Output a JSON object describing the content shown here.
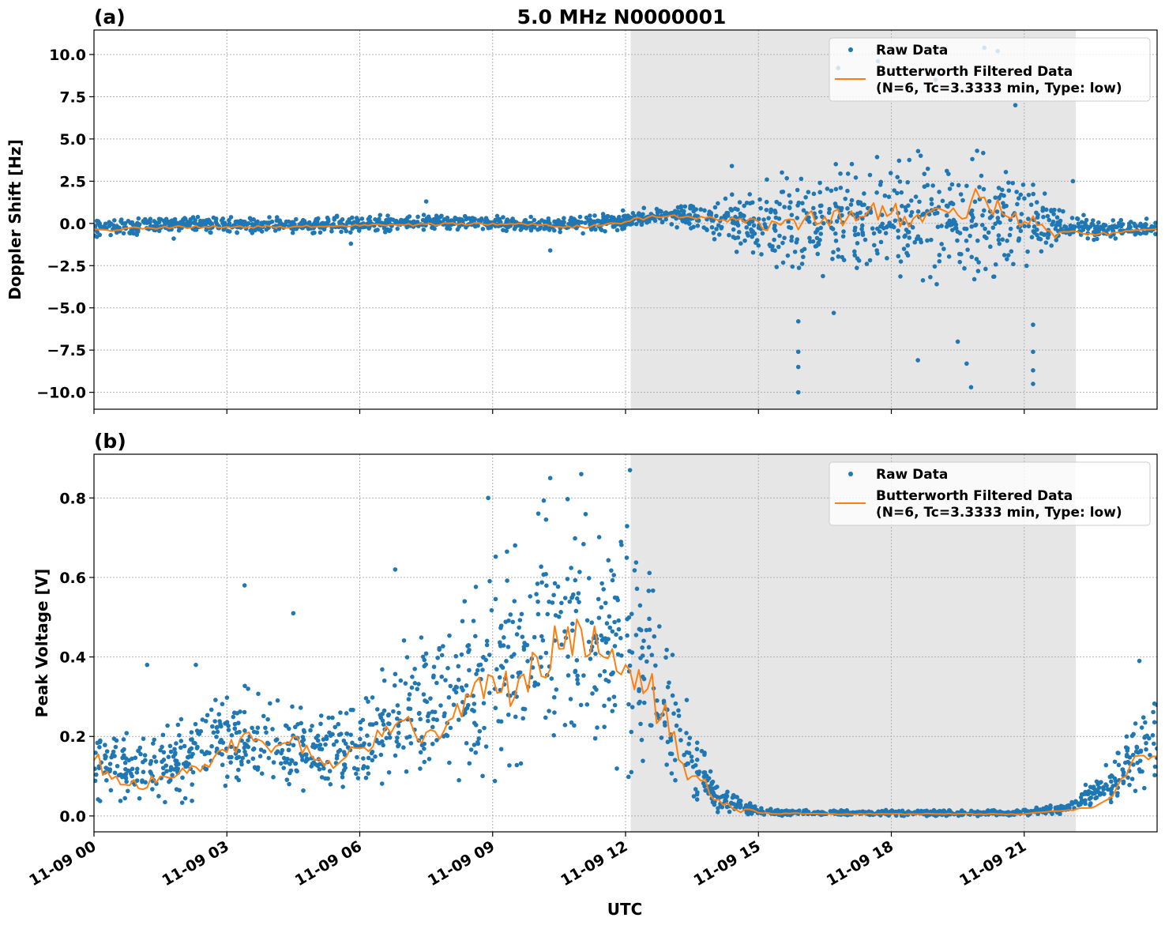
{
  "title": "5.0 MHz N0000001",
  "chart_data": [
    {
      "type": "scatter",
      "panel_label": "(a)",
      "ylabel": "Doppler Shift [Hz]",
      "xlabel": "",
      "date": "11-09",
      "xlim": [
        "00:00",
        "24:00"
      ],
      "ylim": [
        -11.0,
        11.45
      ],
      "grid": true,
      "legend_placement": "top-right",
      "xticks": [
        "11-09 00",
        "11-09 03",
        "11-09 06",
        "11-09 09",
        "11-09 12",
        "11-09 15",
        "11-09 18",
        "11-09 21"
      ],
      "yticks": [
        -10,
        -7.5,
        -5,
        -2.5,
        0,
        2.5,
        5,
        7.5,
        10
      ],
      "ytick_labels": [
        "−10.0",
        "−7.5",
        "−5.0",
        "−2.5",
        "0.0",
        "2.5",
        "5.0",
        "7.5",
        "10.0"
      ],
      "shaded_span": [
        "12:07",
        "22:10"
      ],
      "colors": {
        "raw": "#1f77b4",
        "filtered": "#ff7f0e",
        "shade": "#e6e6e6"
      },
      "legend": {
        "raw": "Raw Data",
        "filtered_line1": "Butterworth Filtered Data",
        "filtered_line2": "(N=6, Tc=3.3333 min, Type: low)"
      },
      "raw_band_hourly": {
        "times": [
          "00:00",
          "01:00",
          "02:00",
          "03:00",
          "04:00",
          "05:00",
          "06:00",
          "07:00",
          "08:00",
          "09:00",
          "10:00",
          "11:00",
          "12:00",
          "13:00",
          "14:00",
          "15:00",
          "16:00",
          "17:00",
          "18:00",
          "19:00",
          "20:00",
          "21:00",
          "22:00",
          "23:00",
          "24:00"
        ],
        "range": [
          [
            -0.8,
            0.2
          ],
          [
            -0.7,
            0.3
          ],
          [
            -0.6,
            0.5
          ],
          [
            -0.6,
            0.4
          ],
          [
            -0.6,
            0.4
          ],
          [
            -0.6,
            0.4
          ],
          [
            -0.6,
            0.5
          ],
          [
            -0.5,
            0.5
          ],
          [
            -0.4,
            0.6
          ],
          [
            -0.5,
            0.5
          ],
          [
            -0.6,
            0.4
          ],
          [
            -0.6,
            0.5
          ],
          [
            -0.4,
            0.9
          ],
          [
            -0.2,
            1.0
          ],
          [
            -1.0,
            1.5
          ],
          [
            -2.5,
            2.5
          ],
          [
            -3.5,
            3.5
          ],
          [
            -3.5,
            3.8
          ],
          [
            -3.5,
            4.0
          ],
          [
            -3.8,
            4.5
          ],
          [
            -3.5,
            4.5
          ],
          [
            -3.0,
            3.0
          ],
          [
            -1.2,
            0.6
          ],
          [
            -0.9,
            0.3
          ],
          [
            -0.8,
            0.3
          ]
        ]
      },
      "raw_outliers": [
        [
          "15:54",
          -10.0
        ],
        [
          "15:54",
          -8.5
        ],
        [
          "15:54",
          -7.6
        ],
        [
          "15:54",
          -5.8
        ],
        [
          "21:12",
          -9.5
        ],
        [
          "21:12",
          -8.7
        ],
        [
          "21:12",
          -7.6
        ],
        [
          "21:12",
          -6.0
        ],
        [
          "19:48",
          -9.7
        ],
        [
          "19:42",
          -8.3
        ],
        [
          "18:36",
          -8.1
        ],
        [
          "19:30",
          -7.0
        ],
        [
          "16:42",
          -5.3
        ],
        [
          "17:42",
          9.6
        ],
        [
          "20:06",
          10.4
        ],
        [
          "20:24",
          10.2
        ],
        [
          "19:42",
          8.9
        ],
        [
          "19:00",
          8.5
        ],
        [
          "16:48",
          9.2
        ],
        [
          "14:24",
          3.4
        ],
        [
          "22:06",
          2.5
        ],
        [
          "10:18",
          -1.6
        ],
        [
          "05:48",
          -1.2
        ],
        [
          "01:48",
          -0.9
        ],
        [
          "07:30",
          1.3
        ],
        [
          "20:48",
          7.0
        ]
      ],
      "filtered": [
        [
          "00:00",
          -0.35
        ],
        [
          "00:30",
          -0.4
        ],
        [
          "01:00",
          -0.25
        ],
        [
          "01:30",
          -0.25
        ],
        [
          "02:00",
          -0.2
        ],
        [
          "02:30",
          -0.2
        ],
        [
          "03:00",
          -0.2
        ],
        [
          "03:30",
          -0.2
        ],
        [
          "04:00",
          -0.2
        ],
        [
          "04:30",
          -0.2
        ],
        [
          "05:00",
          -0.2
        ],
        [
          "05:30",
          -0.15
        ],
        [
          "06:00",
          -0.15
        ],
        [
          "06:30",
          -0.1
        ],
        [
          "07:00",
          -0.1
        ],
        [
          "07:30",
          -0.05
        ],
        [
          "08:00",
          0.0
        ],
        [
          "08:30",
          -0.05
        ],
        [
          "09:00",
          0.0
        ],
        [
          "09:30",
          -0.05
        ],
        [
          "10:00",
          -0.1
        ],
        [
          "10:30",
          -0.2
        ],
        [
          "11:00",
          -0.2
        ],
        [
          "11:30",
          -0.1
        ],
        [
          "12:00",
          0.1
        ],
        [
          "12:30",
          0.35
        ],
        [
          "13:00",
          0.45
        ],
        [
          "13:30",
          0.35
        ],
        [
          "14:00",
          0.3
        ],
        [
          "14:30",
          0.2
        ],
        [
          "15:00",
          0.1
        ],
        [
          "15:30",
          -0.1
        ],
        [
          "16:00",
          0.1
        ],
        [
          "16:30",
          0.4
        ],
        [
          "17:00",
          0.3
        ],
        [
          "17:30",
          0.8
        ],
        [
          "18:00",
          0.6
        ],
        [
          "18:30",
          0.3
        ],
        [
          "19:00",
          0.9
        ],
        [
          "19:30",
          0.5
        ],
        [
          "20:00",
          1.5
        ],
        [
          "20:30",
          0.6
        ],
        [
          "21:00",
          0.1
        ],
        [
          "21:30",
          -0.4
        ],
        [
          "22:00",
          -0.5
        ],
        [
          "22:30",
          -0.6
        ],
        [
          "23:00",
          -0.55
        ],
        [
          "23:30",
          -0.4
        ],
        [
          "24:00",
          -0.35
        ]
      ]
    },
    {
      "type": "scatter",
      "panel_label": "(b)",
      "ylabel": "Peak Voltage [V]",
      "xlabel": "UTC",
      "date": "11-09",
      "xlim": [
        "00:00",
        "24:00"
      ],
      "ylim": [
        -0.04,
        0.91
      ],
      "grid": true,
      "legend_placement": "top-right",
      "xticks": [
        "11-09 00",
        "11-09 03",
        "11-09 06",
        "11-09 09",
        "11-09 12",
        "11-09 15",
        "11-09 18",
        "11-09 21"
      ],
      "yticks": [
        0,
        0.2,
        0.4,
        0.6,
        0.8
      ],
      "ytick_labels": [
        "0.0",
        "0.2",
        "0.4",
        "0.6",
        "0.8"
      ],
      "shaded_span": [
        "12:07",
        "22:10"
      ],
      "colors": {
        "raw": "#1f77b4",
        "filtered": "#ff7f0e",
        "shade": "#e6e6e6"
      },
      "legend": {
        "raw": "Raw Data",
        "filtered_line1": "Butterworth Filtered Data",
        "filtered_line2": "(N=6, Tc=3.3333 min, Type: low)"
      },
      "raw_band_hourly": {
        "times": [
          "00:00",
          "01:00",
          "02:00",
          "03:00",
          "04:00",
          "05:00",
          "06:00",
          "07:00",
          "08:00",
          "09:00",
          "10:00",
          "11:00",
          "12:00",
          "13:00",
          "14:00",
          "15:00",
          "16:00",
          "17:00",
          "18:00",
          "19:00",
          "20:00",
          "21:00",
          "22:00",
          "23:00",
          "24:00"
        ],
        "range": [
          [
            0.02,
            0.28
          ],
          [
            0.02,
            0.2
          ],
          [
            0.03,
            0.26
          ],
          [
            0.06,
            0.35
          ],
          [
            0.06,
            0.3
          ],
          [
            0.05,
            0.28
          ],
          [
            0.05,
            0.3
          ],
          [
            0.06,
            0.45
          ],
          [
            0.07,
            0.5
          ],
          [
            0.08,
            0.65
          ],
          [
            0.1,
            0.8
          ],
          [
            0.1,
            0.8
          ],
          [
            0.1,
            0.8
          ],
          [
            0.05,
            0.45
          ],
          [
            0.01,
            0.1
          ],
          [
            0.0,
            0.02
          ],
          [
            0.0,
            0.015
          ],
          [
            0.0,
            0.015
          ],
          [
            0.0,
            0.015
          ],
          [
            0.0,
            0.015
          ],
          [
            0.0,
            0.015
          ],
          [
            0.0,
            0.015
          ],
          [
            0.005,
            0.04
          ],
          [
            0.03,
            0.15
          ],
          [
            0.05,
            0.35
          ]
        ]
      },
      "raw_outliers": [
        [
          "03:24",
          0.58
        ],
        [
          "04:30",
          0.51
        ],
        [
          "06:48",
          0.62
        ],
        [
          "08:54",
          0.8
        ],
        [
          "10:18",
          0.85
        ],
        [
          "11:00",
          0.86
        ],
        [
          "12:06",
          0.87
        ],
        [
          "01:12",
          0.38
        ],
        [
          "02:18",
          0.38
        ],
        [
          "23:36",
          0.39
        ]
      ],
      "filtered": [
        [
          "00:00",
          0.14
        ],
        [
          "00:30",
          0.1
        ],
        [
          "01:00",
          0.07
        ],
        [
          "01:30",
          0.1
        ],
        [
          "02:00",
          0.12
        ],
        [
          "02:30",
          0.13
        ],
        [
          "03:00",
          0.16
        ],
        [
          "03:30",
          0.21
        ],
        [
          "04:00",
          0.16
        ],
        [
          "04:30",
          0.2
        ],
        [
          "05:00",
          0.14
        ],
        [
          "05:30",
          0.13
        ],
        [
          "06:00",
          0.17
        ],
        [
          "06:30",
          0.2
        ],
        [
          "07:00",
          0.24
        ],
        [
          "07:30",
          0.21
        ],
        [
          "08:00",
          0.24
        ],
        [
          "08:30",
          0.3
        ],
        [
          "09:00",
          0.35
        ],
        [
          "09:30",
          0.3
        ],
        [
          "10:00",
          0.4
        ],
        [
          "10:30",
          0.42
        ],
        [
          "11:00",
          0.47
        ],
        [
          "11:30",
          0.4
        ],
        [
          "12:00",
          0.38
        ],
        [
          "12:30",
          0.32
        ],
        [
          "13:00",
          0.2
        ],
        [
          "13:30",
          0.1
        ],
        [
          "14:00",
          0.04
        ],
        [
          "14:30",
          0.015
        ],
        [
          "15:00",
          0.008
        ],
        [
          "16:00",
          0.005
        ],
        [
          "17:00",
          0.005
        ],
        [
          "18:00",
          0.005
        ],
        [
          "19:00",
          0.005
        ],
        [
          "20:00",
          0.005
        ],
        [
          "21:00",
          0.005
        ],
        [
          "21:30",
          0.01
        ],
        [
          "22:00",
          0.015
        ],
        [
          "22:30",
          0.02
        ],
        [
          "23:00",
          0.05
        ],
        [
          "23:30",
          0.15
        ],
        [
          "24:00",
          0.15
        ]
      ]
    }
  ]
}
